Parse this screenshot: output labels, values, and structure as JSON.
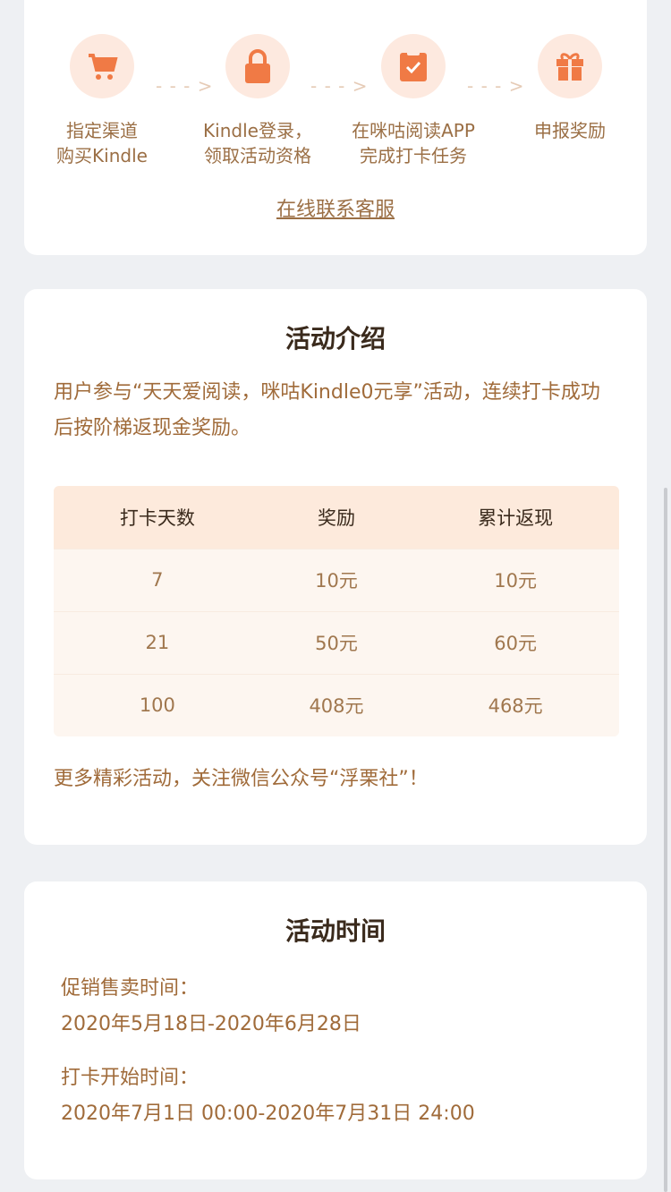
{
  "steps": [
    {
      "icon": "cart-icon",
      "line1": "指定渠道",
      "line2": "购买Kindle"
    },
    {
      "icon": "lock-icon",
      "line1": "Kindle登录，",
      "line2": "领取活动资格"
    },
    {
      "icon": "clipboard-check-icon",
      "line1": "在咪咕阅读APP",
      "line2": "完成打卡任务"
    },
    {
      "icon": "gift-icon",
      "line1": "申报奖励",
      "line2": ""
    }
  ],
  "arrow": "- - - >",
  "contact_link": "在线联系客服",
  "intro": {
    "title": "活动介绍",
    "description": "用户参与“天天爱阅读，咪咕Kindle0元享”活动，连续打卡成功后按阶梯返现金奖励。",
    "table": {
      "headers": [
        "打卡天数",
        "奖励",
        "累计返现"
      ],
      "rows": [
        [
          "7",
          "10元",
          "10元"
        ],
        [
          "21",
          "50元",
          "60元"
        ],
        [
          "100",
          "408元",
          "468元"
        ]
      ]
    },
    "footer": "更多精彩活动，关注微信公众号“浮栗社”！"
  },
  "time": {
    "title": "活动时间",
    "sale_label": "促销售卖时间：",
    "sale_value": "2020年5月18日-2020年6月28日",
    "checkin_label": "打卡开始时间：",
    "checkin_value": "2020年7月1日 00:00-2020年7月31日 24:00"
  },
  "colors": {
    "accent": "#f07a45",
    "text_brown": "#a06b3a",
    "icon_bg": "#fde9df"
  }
}
